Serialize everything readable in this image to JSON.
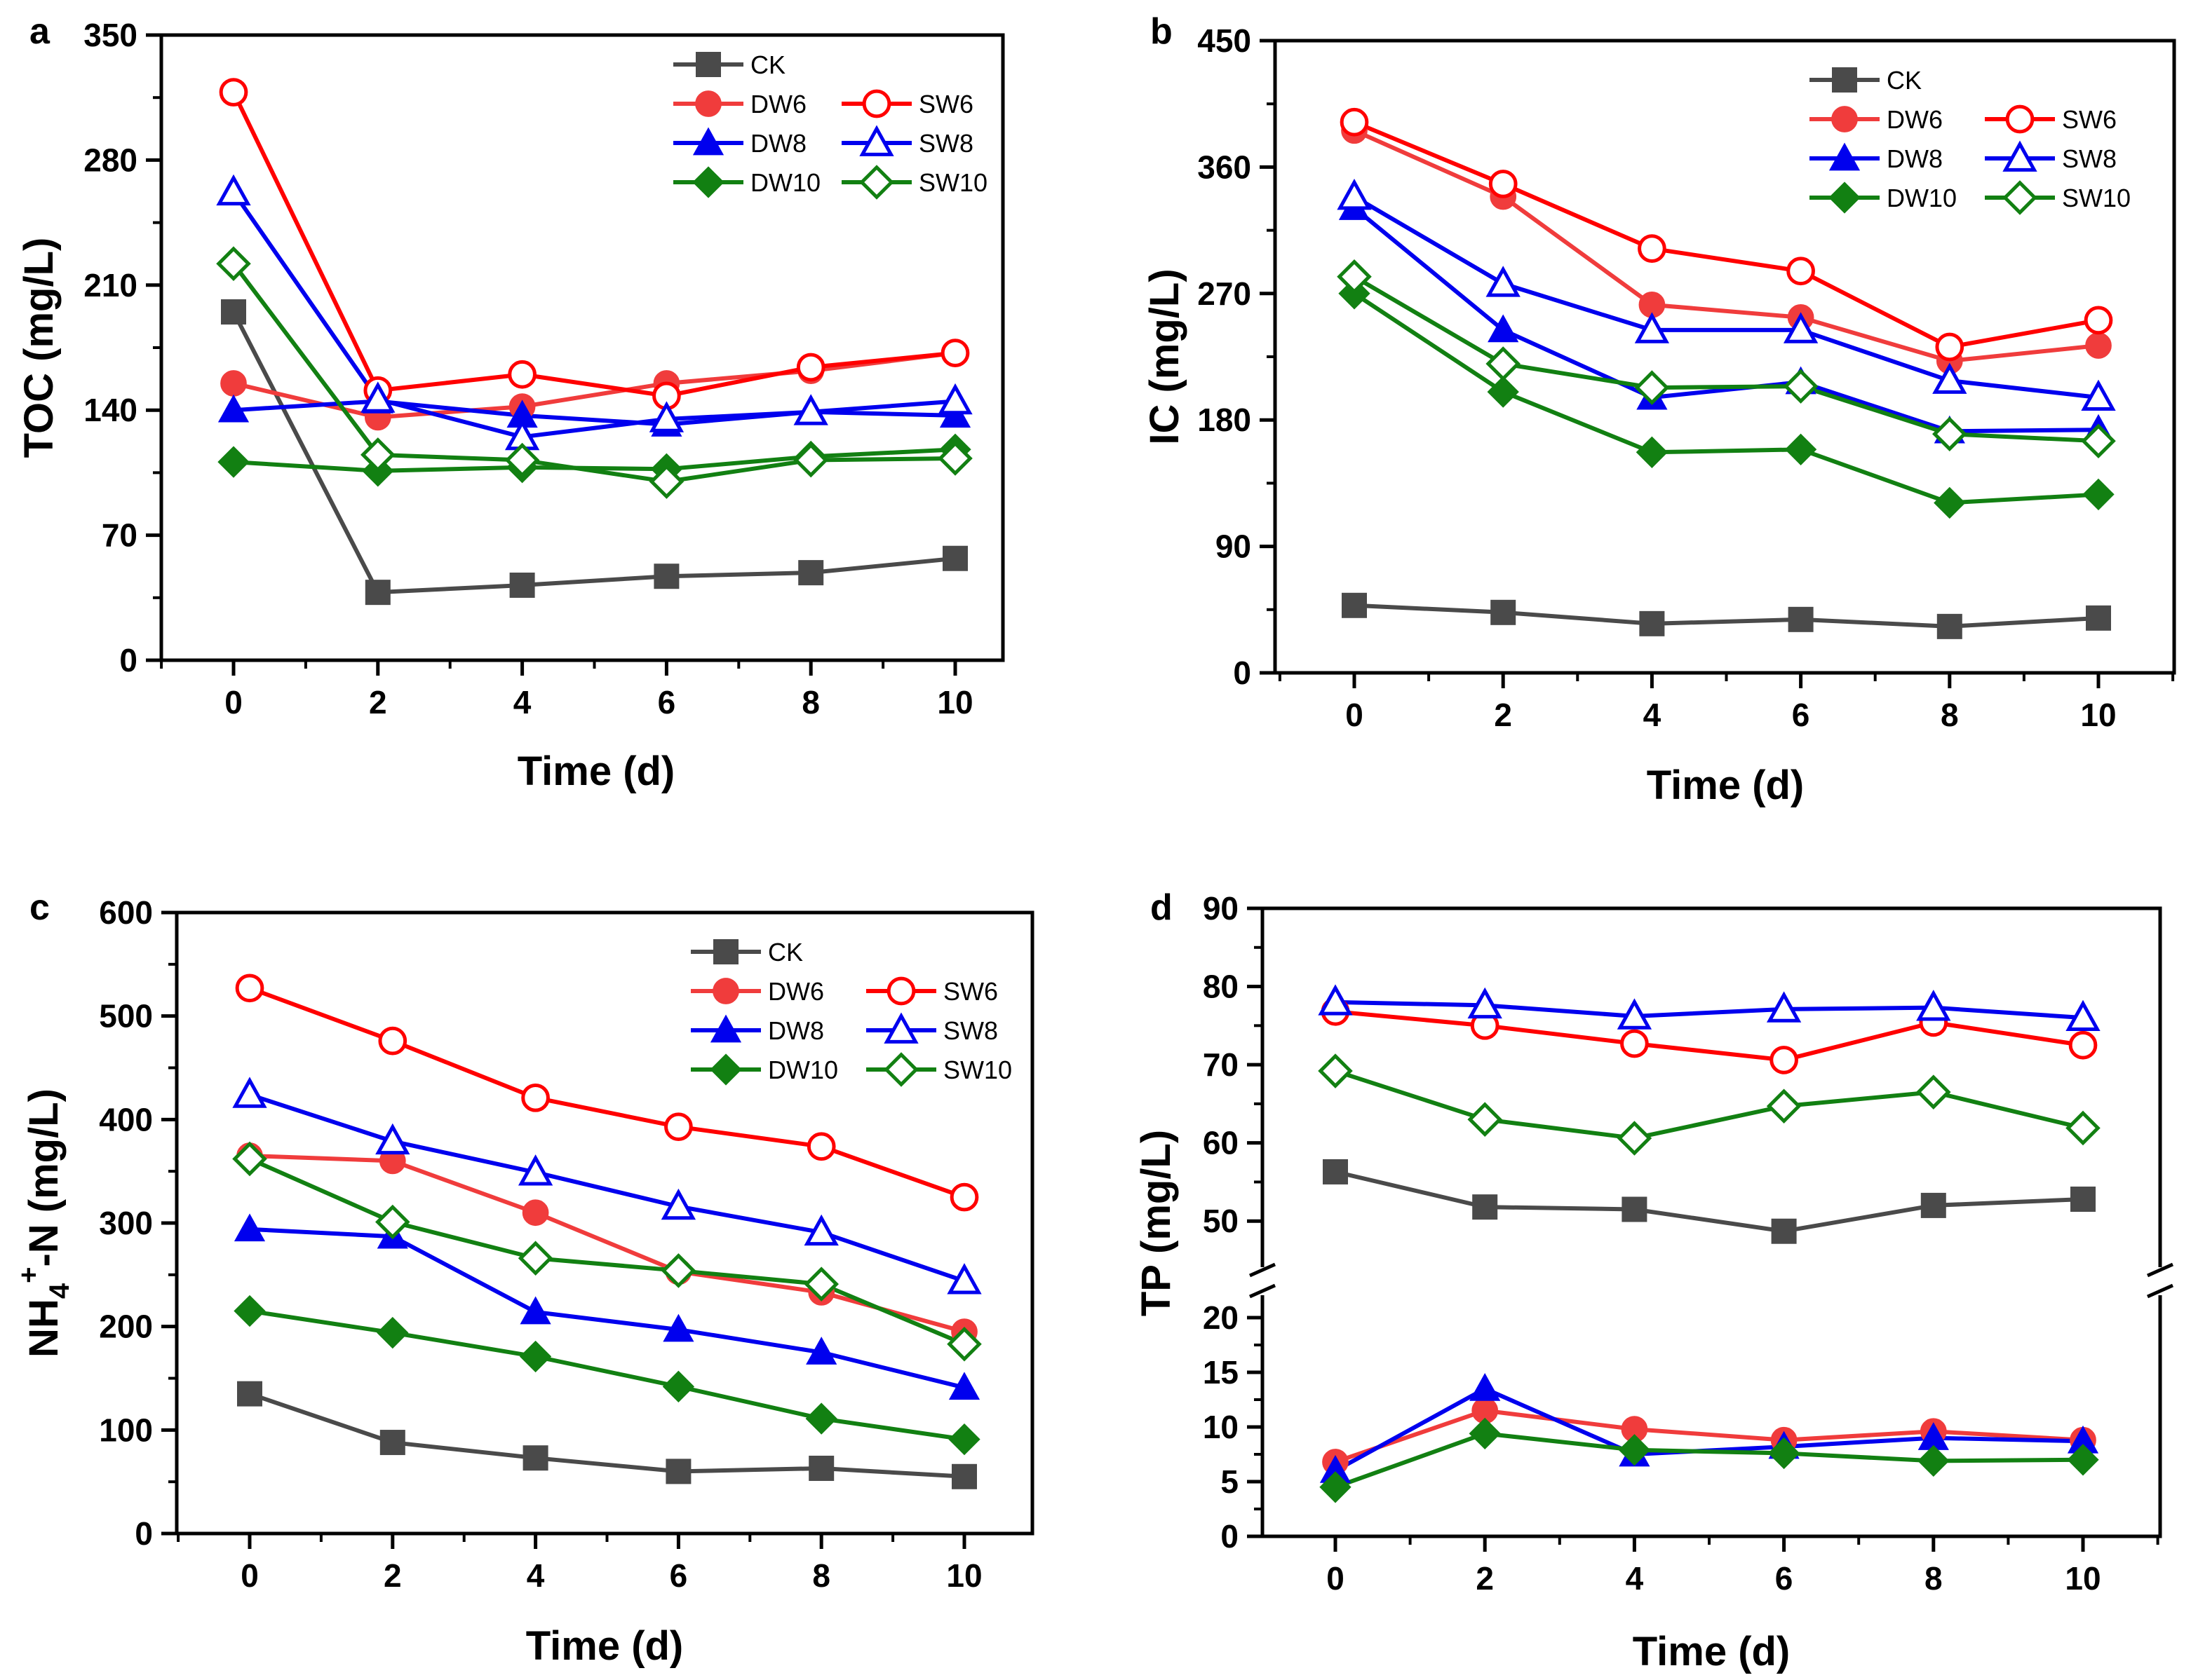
{
  "colors": {
    "CK": "#4a4a4a",
    "DW6": "#f03c3c",
    "SW6": "#ff0000",
    "DW8": "#0000ee",
    "SW8": "#0000ee",
    "DW10": "#128012",
    "SW10": "#128012"
  },
  "chart_data": [
    {
      "type": "line",
      "panel": "a",
      "xlabel": "Time (d)",
      "ylabel": "TOC (mg/L)",
      "x": [
        0,
        2,
        4,
        6,
        8,
        10
      ],
      "xticks": [
        "0",
        "2",
        "4",
        "6",
        "8",
        "10"
      ],
      "ylim": [
        0,
        350
      ],
      "yticks": [
        "0",
        "70",
        "140",
        "210",
        "280",
        "350"
      ],
      "legend": [
        "CK",
        "DW6",
        "SW6",
        "DW8",
        "SW8",
        "DW10",
        "SW10"
      ],
      "legend_position": "top-right",
      "series": [
        {
          "name": "CK",
          "marker": "square",
          "filled": true,
          "values": [
            195,
            38,
            42,
            47,
            49,
            57
          ]
        },
        {
          "name": "DW6",
          "marker": "circle",
          "filled": true,
          "values": [
            155,
            136,
            142,
            155,
            162,
            172
          ]
        },
        {
          "name": "SW6",
          "marker": "circle",
          "filled": false,
          "values": [
            318,
            151,
            160,
            148,
            164,
            172
          ]
        },
        {
          "name": "DW8",
          "marker": "triangle",
          "filled": true,
          "values": [
            140,
            145,
            137,
            132,
            139,
            137
          ]
        },
        {
          "name": "SW8",
          "marker": "triangle",
          "filled": false,
          "values": [
            262,
            146,
            125,
            135,
            139,
            145
          ]
        },
        {
          "name": "DW10",
          "marker": "diamond",
          "filled": true,
          "values": [
            111,
            106,
            108,
            107,
            114,
            118
          ]
        },
        {
          "name": "SW10",
          "marker": "diamond",
          "filled": false,
          "values": [
            222,
            115,
            112,
            100,
            112,
            113
          ]
        }
      ]
    },
    {
      "type": "line",
      "panel": "b",
      "xlabel": "Time (d)",
      "ylabel": "IC (mg/L)",
      "x": [
        0,
        2,
        4,
        6,
        8,
        10
      ],
      "xticks": [
        "0",
        "2",
        "4",
        "6",
        "8",
        "10"
      ],
      "ylim": [
        0,
        450
      ],
      "yticks": [
        "0",
        "90",
        "180",
        "270",
        "360",
        "450"
      ],
      "legend": [
        "CK",
        "DW6",
        "SW6",
        "DW8",
        "SW8",
        "DW10",
        "SW10"
      ],
      "legend_position": "top-right",
      "series": [
        {
          "name": "CK",
          "marker": "square",
          "filled": true,
          "values": [
            48,
            43,
            35,
            38,
            33,
            39
          ]
        },
        {
          "name": "DW6",
          "marker": "circle",
          "filled": true,
          "values": [
            386,
            339,
            262,
            253,
            222,
            233
          ]
        },
        {
          "name": "SW6",
          "marker": "circle",
          "filled": false,
          "values": [
            392,
            348,
            302,
            286,
            232,
            251
          ]
        },
        {
          "name": "DW8",
          "marker": "triangle",
          "filled": true,
          "values": [
            331,
            244,
            196,
            207,
            172,
            173
          ]
        },
        {
          "name": "SW8",
          "marker": "triangle",
          "filled": false,
          "values": [
            339,
            277,
            244,
            244,
            208,
            196
          ]
        },
        {
          "name": "DW10",
          "marker": "diamond",
          "filled": true,
          "values": [
            270,
            200,
            157,
            159,
            121,
            127
          ]
        },
        {
          "name": "SW10",
          "marker": "diamond",
          "filled": false,
          "values": [
            282,
            220,
            203,
            204,
            170,
            165
          ]
        }
      ]
    },
    {
      "type": "line",
      "panel": "c",
      "xlabel": "Time (d)",
      "ylabel_main": "NH",
      "ylabel_sub": "4",
      "ylabel_sup": "+",
      "ylabel_rest": "-N (mg/L)",
      "x": [
        0,
        2,
        4,
        6,
        8,
        10
      ],
      "xticks": [
        "0",
        "2",
        "4",
        "6",
        "8",
        "10"
      ],
      "ylim": [
        0,
        600
      ],
      "yticks": [
        "0",
        "100",
        "200",
        "300",
        "400",
        "500",
        "600"
      ],
      "legend": [
        "CK",
        "DW6",
        "SW6",
        "DW8",
        "SW8",
        "DW10",
        "SW10"
      ],
      "legend_position": "top-right",
      "series": [
        {
          "name": "CK",
          "marker": "square",
          "filled": true,
          "values": [
            135,
            88,
            73,
            60,
            63,
            55
          ]
        },
        {
          "name": "DW6",
          "marker": "circle",
          "filled": true,
          "values": [
            365,
            360,
            310,
            253,
            233,
            195
          ]
        },
        {
          "name": "SW6",
          "marker": "circle",
          "filled": false,
          "values": [
            527,
            476,
            421,
            393,
            374,
            325
          ]
        },
        {
          "name": "DW8",
          "marker": "triangle",
          "filled": true,
          "values": [
            294,
            287,
            214,
            197,
            175,
            141
          ]
        },
        {
          "name": "SW8",
          "marker": "triangle",
          "filled": false,
          "values": [
            424,
            379,
            349,
            316,
            291,
            244
          ]
        },
        {
          "name": "DW10",
          "marker": "diamond",
          "filled": true,
          "values": [
            215,
            194,
            171,
            142,
            111,
            91
          ]
        },
        {
          "name": "SW10",
          "marker": "diamond",
          "filled": false,
          "values": [
            362,
            301,
            266,
            254,
            241,
            183
          ]
        }
      ]
    },
    {
      "type": "line",
      "panel": "d",
      "xlabel": "Time (d)",
      "ylabel": "TP (mg/L)",
      "x": [
        0,
        2,
        4,
        6,
        8,
        10
      ],
      "xticks": [
        "0",
        "2",
        "4",
        "6",
        "8",
        "10"
      ],
      "axis_break": {
        "lower_range": [
          0,
          20
        ],
        "upper_range": [
          45,
          90
        ]
      },
      "yticks_lower": [
        "0",
        "5",
        "10",
        "15",
        "20"
      ],
      "yticks_upper": [
        "50",
        "60",
        "70",
        "80",
        "90"
      ],
      "series": [
        {
          "name": "CK",
          "marker": "square",
          "filled": true,
          "values": [
            56.3,
            51.8,
            51.5,
            48.7,
            52.0,
            52.8
          ]
        },
        {
          "name": "DW6",
          "marker": "circle",
          "filled": true,
          "values": [
            6.8,
            11.5,
            9.8,
            8.8,
            9.6,
            8.8
          ]
        },
        {
          "name": "SW6",
          "marker": "circle",
          "filled": false,
          "values": [
            76.8,
            75.0,
            72.7,
            70.6,
            75.4,
            72.5
          ]
        },
        {
          "name": "DW8",
          "marker": "triangle",
          "filled": true,
          "values": [
            6.0,
            13.5,
            7.5,
            8.2,
            9.0,
            8.7
          ]
        },
        {
          "name": "SW8",
          "marker": "triangle",
          "filled": false,
          "values": [
            78.0,
            77.6,
            76.2,
            77.1,
            77.3,
            76.0
          ]
        },
        {
          "name": "DW10",
          "marker": "diamond",
          "filled": true,
          "values": [
            4.5,
            9.4,
            7.9,
            7.6,
            6.9,
            7.0
          ]
        },
        {
          "name": "SW10",
          "marker": "diamond",
          "filled": false,
          "values": [
            69.2,
            63.0,
            60.6,
            64.7,
            66.5,
            61.9
          ]
        }
      ]
    }
  ]
}
